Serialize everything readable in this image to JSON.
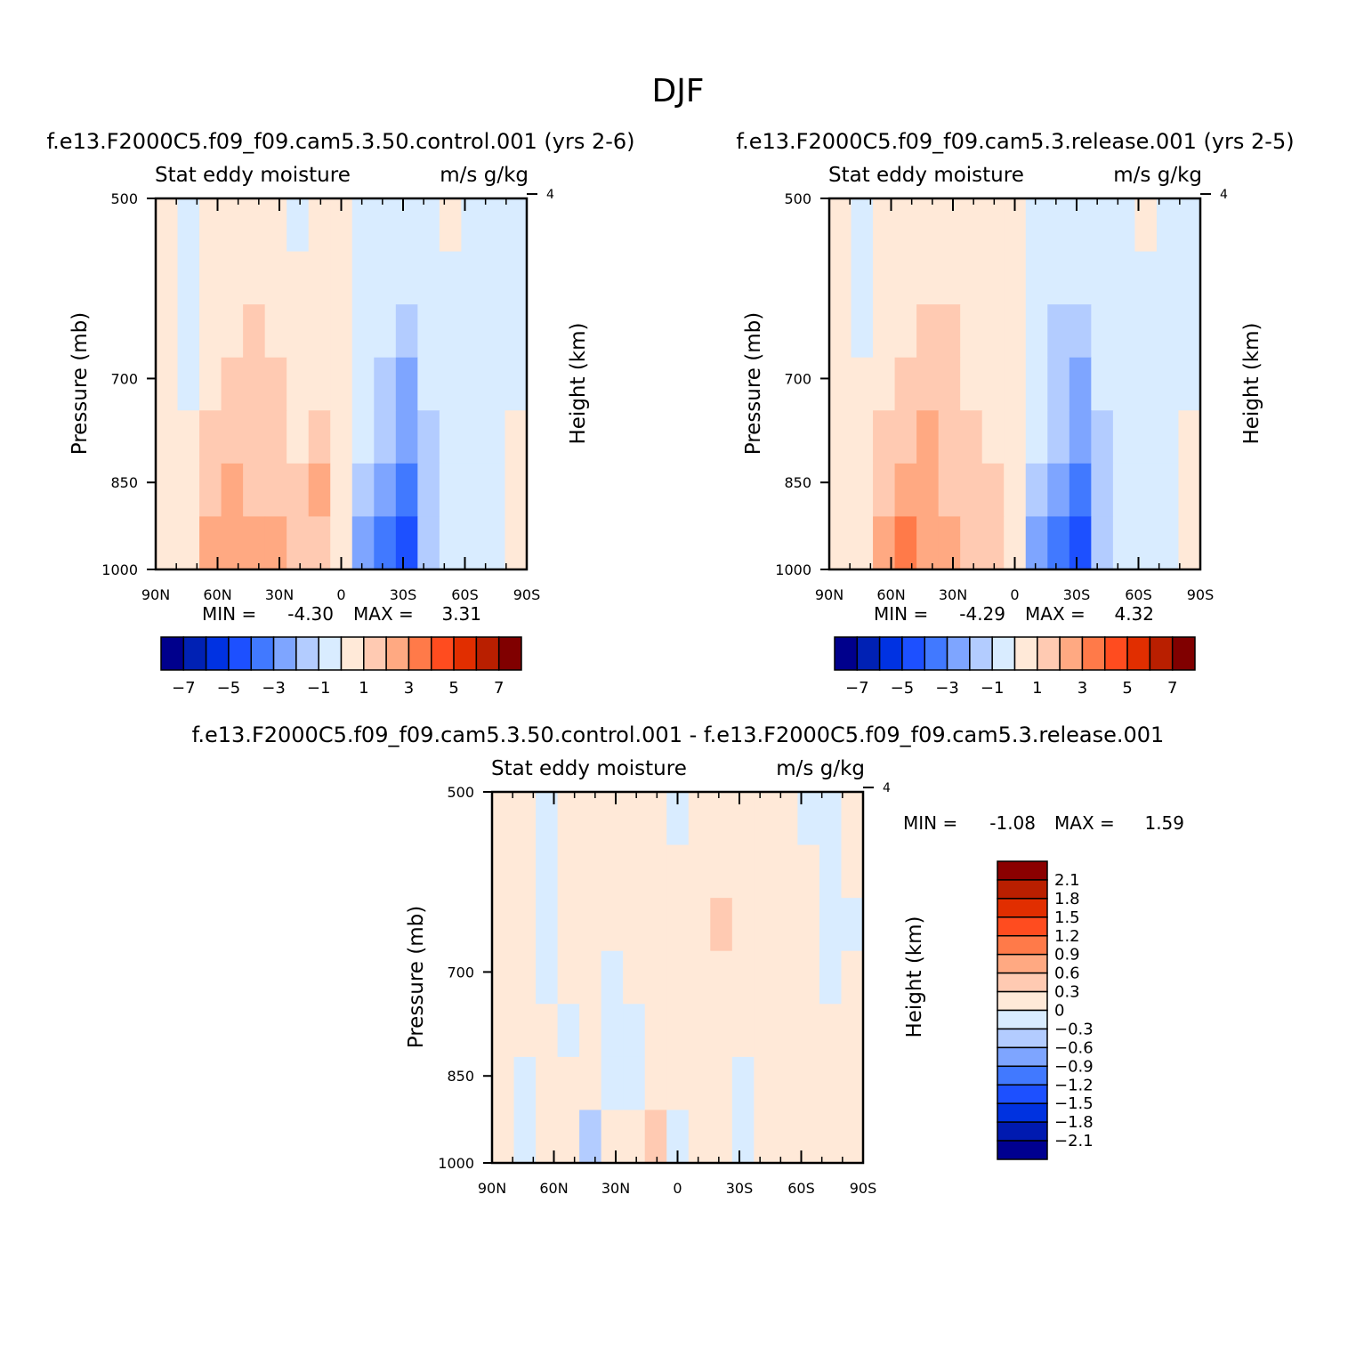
{
  "figure_title": "DJF",
  "colors": {
    "diverging_15": [
      "#00008c",
      "#0021b4",
      "#0032e2",
      "#1d50ff",
      "#4179ff",
      "#7ea5ff",
      "#b3ccff",
      "#d9ecff",
      "#ffe9d8",
      "#ffcab2",
      "#ffa982",
      "#ff7a49",
      "#ff4c1f",
      "#e12e00",
      "#b91f00",
      "#800000"
    ],
    "diff_16": [
      "#000090",
      "#001ab0",
      "#0032e0",
      "#1d50ff",
      "#4179ff",
      "#7ea5ff",
      "#b3ccff",
      "#d9ecff",
      "#ffe9d8",
      "#ffcab2",
      "#ffa982",
      "#ff7a49",
      "#ff4c1f",
      "#e12e00",
      "#b91f00",
      "#8b0000"
    ]
  },
  "chart_data": [
    {
      "type": "heatmap",
      "title": "f.e13.F2000C5.f09_f09.cam5.3.50.control.001  (yrs 2-6)",
      "subtitle_left": "Stat eddy moisture",
      "subtitle_right": "m/s g/kg",
      "xlabel": "",
      "ylabel": "Pressure (mb)",
      "ylabel_right": "Height (km)",
      "x_ticks": [
        "90N",
        "60N",
        "30N",
        "0",
        "30S",
        "60S",
        "90S"
      ],
      "y_ticks": [
        "500",
        "700",
        "850",
        "1000"
      ],
      "y_right_ticks": [
        "4"
      ],
      "min_label": "MIN =",
      "min_value": "-4.30",
      "max_label": "MAX =",
      "max_value": "3.31",
      "colorbar_labels": [
        "-7",
        "-5",
        "-3",
        "-1",
        "1",
        "3",
        "5",
        "7"
      ],
      "values_grid": [
        [
          0.5,
          -0.5,
          0.5,
          0.5,
          0.5,
          0.5,
          -0.5,
          0.5,
          0.5,
          -0.5,
          -0.5,
          -0.5,
          -0.5,
          0.5,
          -0.5,
          -0.5,
          -0.5
        ],
        [
          0.5,
          -0.5,
          0.5,
          0.5,
          0.5,
          0.5,
          0.5,
          0.5,
          0.5,
          -0.5,
          -0.5,
          -0.5,
          -0.5,
          -0.5,
          -0.5,
          -0.5,
          -0.5
        ],
        [
          0.5,
          -0.5,
          0.5,
          0.5,
          1.5,
          0.5,
          0.5,
          0.5,
          0.5,
          -0.5,
          -0.5,
          -1.5,
          -0.5,
          -0.5,
          -0.5,
          -0.5,
          -0.5
        ],
        [
          0.5,
          -0.5,
          0.5,
          1.5,
          1.5,
          1.5,
          0.5,
          0.5,
          0.5,
          -0.5,
          -1.5,
          -2.5,
          -0.5,
          -0.5,
          -0.5,
          -0.5,
          -0.5
        ],
        [
          0.5,
          0.5,
          1.5,
          1.5,
          1.5,
          1.5,
          0.5,
          1.5,
          0.5,
          -0.5,
          -1.5,
          -2.5,
          -1.5,
          -0.5,
          -0.5,
          -0.5,
          0.5
        ],
        [
          0.5,
          0.5,
          1.5,
          2.5,
          1.5,
          1.5,
          1.5,
          2.5,
          0.5,
          -1.5,
          -2.5,
          -3.5,
          -1.5,
          -0.5,
          -0.5,
          -0.5,
          0.5
        ],
        [
          0.5,
          0.5,
          2.5,
          2.5,
          2.5,
          2.5,
          1.5,
          1.5,
          0.5,
          -2.5,
          -3.5,
          -4.5,
          -1.5,
          -0.5,
          -0.5,
          -0.5,
          0.5
        ]
      ]
    },
    {
      "type": "heatmap",
      "title": "f.e13.F2000C5.f09_f09.cam5.3.release.001  (yrs 2-5)",
      "subtitle_left": "Stat eddy moisture",
      "subtitle_right": "m/s g/kg",
      "xlabel": "",
      "ylabel": "Pressure (mb)",
      "ylabel_right": "Height (km)",
      "x_ticks": [
        "90N",
        "60N",
        "30N",
        "0",
        "30S",
        "60S",
        "90S"
      ],
      "y_ticks": [
        "500",
        "700",
        "850",
        "1000"
      ],
      "y_right_ticks": [
        "4"
      ],
      "min_label": "MIN =",
      "min_value": "-4.29",
      "max_label": "MAX =",
      "max_value": "4.32",
      "colorbar_labels": [
        "-7",
        "-5",
        "-3",
        "-1",
        "1",
        "3",
        "5",
        "7"
      ],
      "values_grid": [
        [
          0.5,
          -0.5,
          0.5,
          0.5,
          0.5,
          0.5,
          0.5,
          0.5,
          0.5,
          -0.5,
          -0.5,
          -0.5,
          -0.5,
          -0.5,
          0.5,
          -0.5,
          -0.5
        ],
        [
          0.5,
          -0.5,
          0.5,
          0.5,
          0.5,
          0.5,
          0.5,
          0.5,
          0.5,
          -0.5,
          -0.5,
          -0.5,
          -0.5,
          -0.5,
          -0.5,
          -0.5,
          -0.5
        ],
        [
          0.5,
          -0.5,
          0.5,
          0.5,
          1.5,
          1.5,
          0.5,
          0.5,
          0.5,
          -0.5,
          -1.5,
          -1.5,
          -0.5,
          -0.5,
          -0.5,
          -0.5,
          -0.5
        ],
        [
          0.5,
          0.5,
          0.5,
          1.5,
          1.5,
          1.5,
          0.5,
          0.5,
          0.5,
          -0.5,
          -1.5,
          -2.5,
          -0.5,
          -0.5,
          -0.5,
          -0.5,
          -0.5
        ],
        [
          0.5,
          0.5,
          1.5,
          1.5,
          2.5,
          1.5,
          1.5,
          0.5,
          0.5,
          -0.5,
          -1.5,
          -2.5,
          -1.5,
          -0.5,
          -0.5,
          -0.5,
          0.5
        ],
        [
          0.5,
          0.5,
          1.5,
          2.5,
          2.5,
          1.5,
          1.5,
          1.5,
          0.5,
          -1.5,
          -2.5,
          -3.5,
          -1.5,
          -0.5,
          -0.5,
          -0.5,
          0.5
        ],
        [
          0.5,
          0.5,
          2.5,
          3.5,
          2.5,
          2.5,
          1.5,
          1.5,
          0.5,
          -2.5,
          -3.5,
          -4.5,
          -1.5,
          -0.5,
          -0.5,
          -0.5,
          0.5
        ]
      ]
    },
    {
      "type": "heatmap",
      "title": "f.e13.F2000C5.f09_f09.cam5.3.50.control.001 - f.e13.F2000C5.f09_f09.cam5.3.release.001",
      "subtitle_left": "Stat eddy moisture",
      "subtitle_right": "m/s g/kg",
      "xlabel": "",
      "ylabel": "Pressure (mb)",
      "ylabel_right": "Height (km)",
      "x_ticks": [
        "90N",
        "60N",
        "30N",
        "0",
        "30S",
        "60S",
        "90S"
      ],
      "y_ticks": [
        "500",
        "700",
        "850",
        "1000"
      ],
      "y_right_ticks": [
        "4"
      ],
      "min_label": "MIN =",
      "min_value": "-1.08",
      "max_label": "MAX =",
      "max_value": "1.59",
      "colorbar_labels": [
        "2.1",
        "1.8",
        "1.5",
        "1.2",
        "0.9",
        "0.6",
        "0.3",
        "0",
        "-0.3",
        "-0.6",
        "-0.9",
        "-1.2",
        "-1.5",
        "-1.8",
        "-2.1"
      ],
      "values_grid": [
        [
          0.15,
          0.15,
          -0.15,
          0.15,
          0.15,
          0.15,
          0.15,
          0.15,
          -0.15,
          0.15,
          0.15,
          0.15,
          0.15,
          0.15,
          -0.15,
          -0.15,
          0.15
        ],
        [
          0.15,
          0.15,
          -0.15,
          0.15,
          0.15,
          0.15,
          0.15,
          0.15,
          0.15,
          0.15,
          0.15,
          0.15,
          0.15,
          0.15,
          0.15,
          -0.15,
          0.15
        ],
        [
          0.15,
          0.15,
          -0.15,
          0.15,
          0.15,
          0.15,
          0.15,
          0.15,
          0.15,
          0.15,
          0.45,
          0.15,
          0.15,
          0.15,
          0.15,
          -0.15,
          -0.15
        ],
        [
          0.15,
          0.15,
          -0.15,
          0.15,
          0.15,
          -0.15,
          0.15,
          0.15,
          0.15,
          0.15,
          0.15,
          0.15,
          0.15,
          0.15,
          0.15,
          -0.15,
          0.15
        ],
        [
          0.15,
          0.15,
          0.15,
          -0.15,
          0.15,
          -0.15,
          -0.15,
          0.15,
          0.15,
          0.15,
          0.15,
          0.15,
          0.15,
          0.15,
          0.15,
          0.15,
          0.15
        ],
        [
          0.15,
          -0.15,
          0.15,
          0.15,
          0.15,
          -0.15,
          -0.15,
          0.15,
          0.15,
          0.15,
          0.15,
          -0.15,
          0.15,
          0.15,
          0.15,
          0.15,
          0.15
        ],
        [
          0.15,
          -0.15,
          0.15,
          0.15,
          -0.45,
          0.15,
          0.15,
          0.45,
          -0.15,
          0.15,
          0.15,
          -0.15,
          0.15,
          0.15,
          0.15,
          0.15,
          0.15
        ]
      ]
    }
  ]
}
